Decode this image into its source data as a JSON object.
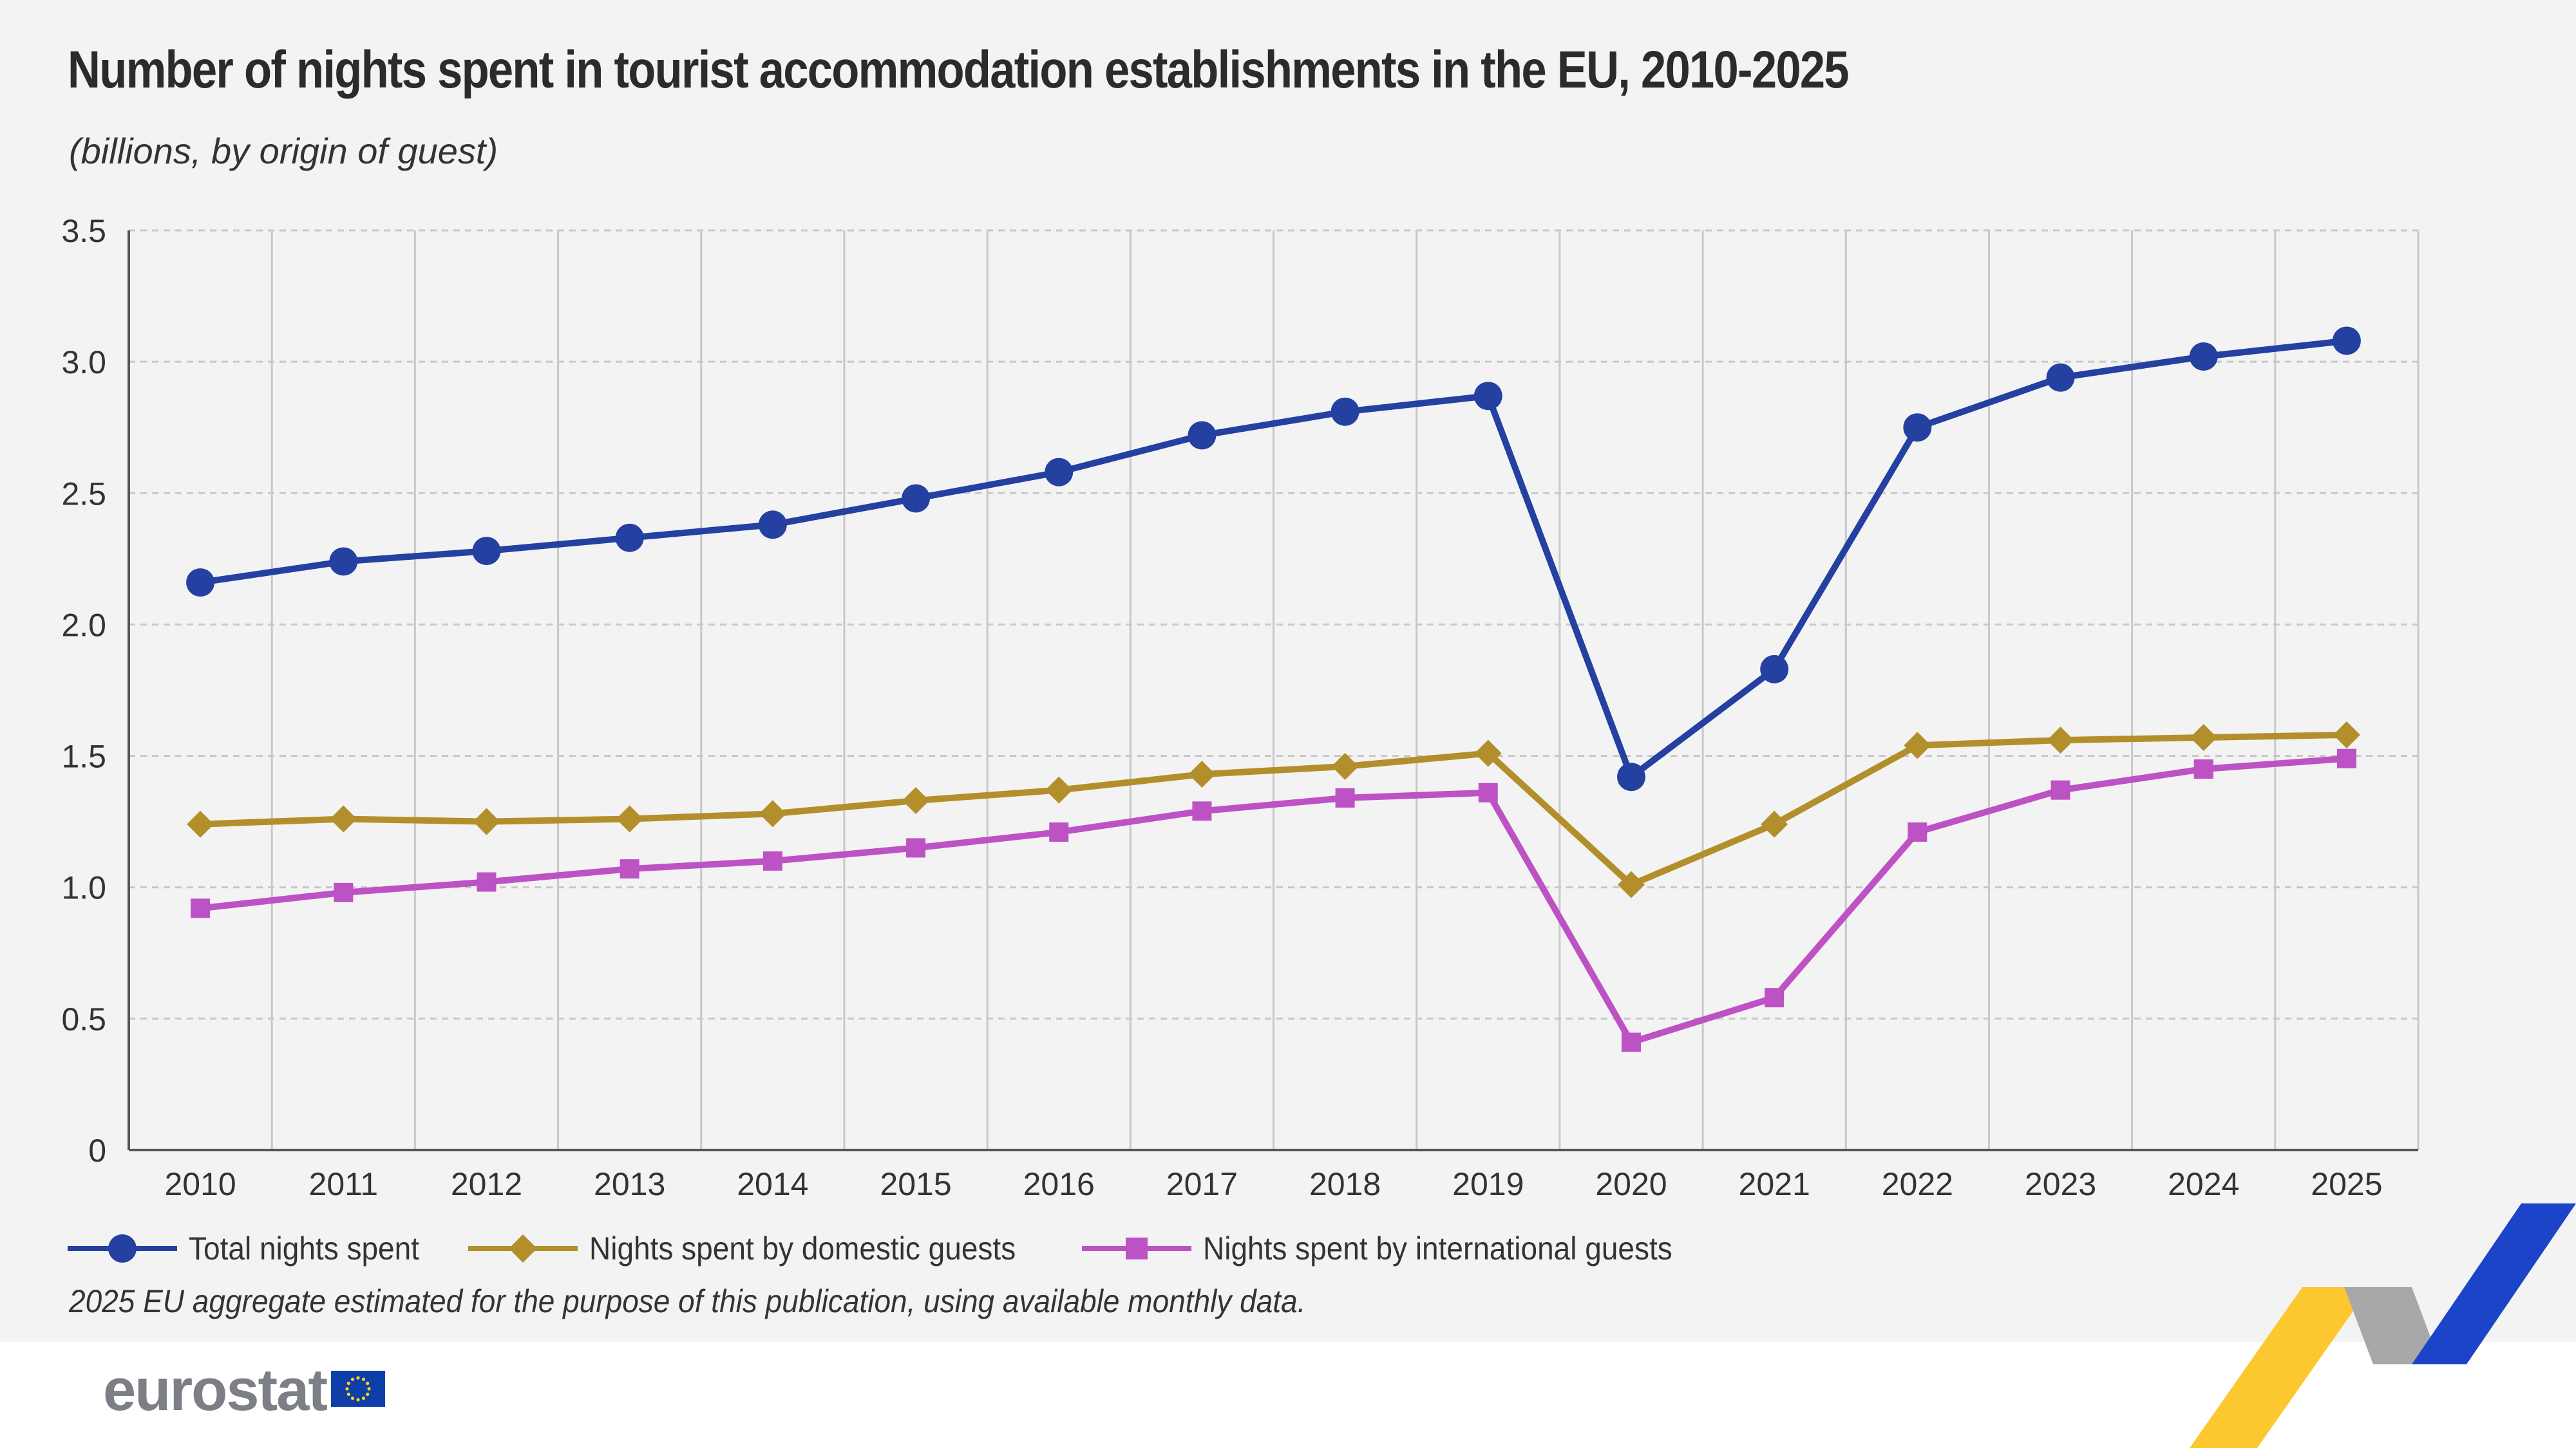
{
  "title": "Number of nights spent in tourist accommodation establishments in the EU, 2010-2025",
  "subtitle": "(billions, by origin of guest)",
  "footnote": "2025 EU aggregate estimated for the purpose of this publication, using available monthly data.",
  "logo": "eurostat",
  "colors": {
    "total": "#2440a0",
    "domestic": "#b38f2b",
    "international": "#bd52c5",
    "grid": "#c8c8c8",
    "axis": "#555555",
    "text": "#333333",
    "deco_yellow": "#fdc82f",
    "deco_grey": "#9b9b9b",
    "deco_blue": "#1c44c8"
  },
  "chart_data": {
    "type": "line",
    "x": [
      "2010",
      "2011",
      "2012",
      "2013",
      "2014",
      "2015",
      "2016",
      "2017",
      "2018",
      "2019",
      "2020",
      "2021",
      "2022",
      "2023",
      "2024",
      "2025"
    ],
    "yticks": [
      "0",
      "0.5",
      "1.0",
      "1.5",
      "2.0",
      "2.5",
      "3.0",
      "3.5"
    ],
    "ylim": [
      0,
      3.5
    ],
    "grid": true,
    "legend_position": "bottom-left",
    "series": [
      {
        "name": "Total nights spent",
        "marker": "circle",
        "color": "#2440a0",
        "values": [
          2.16,
          2.24,
          2.28,
          2.33,
          2.38,
          2.48,
          2.58,
          2.72,
          2.81,
          2.87,
          1.42,
          1.83,
          2.75,
          2.94,
          3.02,
          3.08
        ]
      },
      {
        "name": "Nights spent by domestic guests",
        "marker": "diamond",
        "color": "#b38f2b",
        "values": [
          1.24,
          1.26,
          1.25,
          1.26,
          1.28,
          1.33,
          1.37,
          1.43,
          1.46,
          1.51,
          1.01,
          1.24,
          1.54,
          1.56,
          1.57,
          1.58
        ]
      },
      {
        "name": "Nights spent by international guests",
        "marker": "square",
        "color": "#bd52c5",
        "values": [
          0.92,
          0.98,
          1.02,
          1.07,
          1.1,
          1.15,
          1.21,
          1.29,
          1.34,
          1.36,
          0.41,
          0.58,
          1.21,
          1.37,
          1.45,
          1.49
        ]
      }
    ]
  }
}
